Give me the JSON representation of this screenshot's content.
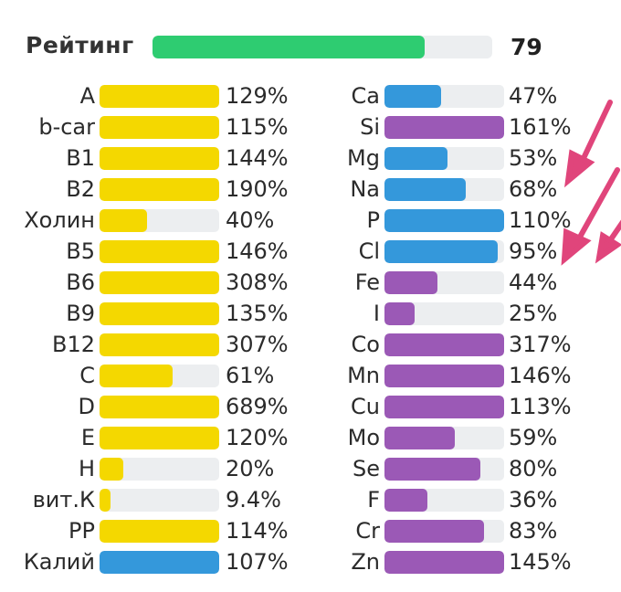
{
  "rating": {
    "label": "Рейтинг",
    "value": "79",
    "fill_fraction": 0.8,
    "color": "#2ecc71"
  },
  "colors": {
    "vitamin": "#f4d800",
    "mineral_blue": "#3498db",
    "mineral_purple": "#9b59b6",
    "track": "#eceef0",
    "arrow": "#e0457b"
  },
  "vitamins": [
    {
      "name": "A",
      "pct": "129%",
      "fill": 1.0,
      "color": "vitamin"
    },
    {
      "name": "b-car",
      "pct": "115%",
      "fill": 1.0,
      "color": "vitamin"
    },
    {
      "name": "B1",
      "pct": "144%",
      "fill": 1.0,
      "color": "vitamin"
    },
    {
      "name": "B2",
      "pct": "190%",
      "fill": 1.0,
      "color": "vitamin"
    },
    {
      "name": "Холин",
      "pct": "40%",
      "fill": 0.4,
      "color": "vitamin"
    },
    {
      "name": "B5",
      "pct": "146%",
      "fill": 1.0,
      "color": "vitamin"
    },
    {
      "name": "B6",
      "pct": "308%",
      "fill": 1.0,
      "color": "vitamin"
    },
    {
      "name": "B9",
      "pct": "135%",
      "fill": 1.0,
      "color": "vitamin"
    },
    {
      "name": "B12",
      "pct": "307%",
      "fill": 1.0,
      "color": "vitamin"
    },
    {
      "name": "C",
      "pct": "61%",
      "fill": 0.61,
      "color": "vitamin"
    },
    {
      "name": "D",
      "pct": "689%",
      "fill": 1.0,
      "color": "vitamin"
    },
    {
      "name": "E",
      "pct": "120%",
      "fill": 1.0,
      "color": "vitamin"
    },
    {
      "name": "H",
      "pct": "20%",
      "fill": 0.2,
      "color": "vitamin"
    },
    {
      "name": "вит.К",
      "pct": "9.4%",
      "fill": 0.094,
      "color": "vitamin"
    },
    {
      "name": "PP",
      "pct": "114%",
      "fill": 1.0,
      "color": "vitamin"
    },
    {
      "name": "Калий",
      "pct": "107%",
      "fill": 1.0,
      "color": "mineral_blue"
    }
  ],
  "minerals": [
    {
      "name": "Ca",
      "pct": "47%",
      "fill": 0.47,
      "color": "mineral_blue"
    },
    {
      "name": "Si",
      "pct": "161%",
      "fill": 1.0,
      "color": "mineral_purple"
    },
    {
      "name": "Mg",
      "pct": "53%",
      "fill": 0.53,
      "color": "mineral_blue"
    },
    {
      "name": "Na",
      "pct": "68%",
      "fill": 0.68,
      "color": "mineral_blue"
    },
    {
      "name": "P",
      "pct": "110%",
      "fill": 1.0,
      "color": "mineral_blue"
    },
    {
      "name": "Cl",
      "pct": "95%",
      "fill": 0.95,
      "color": "mineral_blue"
    },
    {
      "name": "Fe",
      "pct": "44%",
      "fill": 0.44,
      "color": "mineral_purple"
    },
    {
      "name": "I",
      "pct": "25%",
      "fill": 0.25,
      "color": "mineral_purple"
    },
    {
      "name": "Co",
      "pct": "317%",
      "fill": 1.0,
      "color": "mineral_purple"
    },
    {
      "name": "Mn",
      "pct": "146%",
      "fill": 1.0,
      "color": "mineral_purple"
    },
    {
      "name": "Cu",
      "pct": "113%",
      "fill": 1.0,
      "color": "mineral_purple"
    },
    {
      "name": "Mo",
      "pct": "59%",
      "fill": 0.59,
      "color": "mineral_purple"
    },
    {
      "name": "Se",
      "pct": "80%",
      "fill": 0.8,
      "color": "mineral_purple"
    },
    {
      "name": "F",
      "pct": "36%",
      "fill": 0.36,
      "color": "mineral_purple"
    },
    {
      "name": "Cr",
      "pct": "83%",
      "fill": 0.83,
      "color": "mineral_purple"
    },
    {
      "name": "Zn",
      "pct": "145%",
      "fill": 1.0,
      "color": "mineral_purple"
    }
  ]
}
